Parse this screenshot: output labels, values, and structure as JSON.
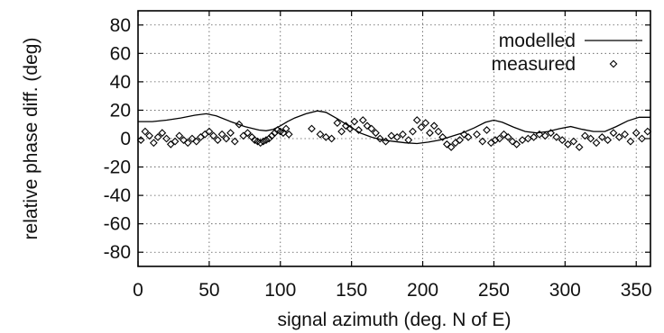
{
  "chart_data": {
    "type": "scatter",
    "title": "",
    "xlabel": "signal azimuth (deg. N of E)",
    "ylabel": "relative phase diff. (deg)",
    "xlim": [
      0,
      360
    ],
    "ylim": [
      -90,
      90
    ],
    "xticks": [
      0,
      50,
      100,
      150,
      200,
      250,
      300,
      350
    ],
    "yticks": [
      -80,
      -60,
      -40,
      -20,
      0,
      20,
      40,
      60,
      80
    ],
    "grid": true,
    "legend": "top-right",
    "series": [
      {
        "name": "modelled",
        "style": "line",
        "color": "#000000",
        "x": [
          0,
          10,
          20,
          30,
          40,
          48,
          55,
          65,
          75,
          85,
          90,
          95,
          100,
          105,
          110,
          118,
          126,
          132,
          140,
          148,
          156,
          164,
          172,
          180,
          188,
          196,
          204,
          212,
          220,
          228,
          236,
          244,
          250,
          256,
          264,
          272,
          280,
          288,
          296,
          304,
          312,
          320,
          328,
          336,
          344,
          352,
          360
        ],
        "y": [
          12,
          12,
          13,
          14.5,
          16.5,
          17.5,
          16,
          12,
          8.5,
          6,
          5.5,
          6.5,
          9,
          12,
          14.5,
          17.5,
          19.5,
          18.5,
          14,
          9,
          4,
          1,
          -1,
          -2,
          -3,
          -3.5,
          -2.5,
          -1,
          1.5,
          4,
          7.5,
          11.5,
          13,
          11.5,
          8,
          5,
          4,
          5,
          7,
          8.5,
          6.5,
          5,
          5,
          8.5,
          12.5,
          15,
          15
        ]
      },
      {
        "name": "measured",
        "style": "diamond",
        "color": "#000000",
        "x": [
          2,
          5,
          8,
          11,
          14,
          17,
          20,
          23,
          26,
          29,
          32,
          35,
          38,
          41,
          44,
          47,
          50,
          53,
          56,
          59,
          62,
          65,
          68,
          71,
          74,
          77,
          80,
          82,
          84,
          86,
          88,
          90,
          92,
          94,
          96,
          98,
          100,
          102,
          104,
          106,
          122,
          128,
          132,
          136,
          140,
          143,
          146,
          149,
          152,
          155,
          158,
          161,
          164,
          167,
          170,
          174,
          178,
          182,
          186,
          190,
          193,
          196,
          199,
          202,
          205,
          208,
          211,
          214,
          217,
          220,
          223,
          226,
          229,
          232,
          238,
          242,
          245,
          248,
          251,
          254,
          257,
          260,
          263,
          266,
          270,
          274,
          278,
          282,
          286,
          290,
          294,
          298,
          302,
          306,
          310,
          314,
          318,
          322,
          326,
          330,
          334,
          338,
          342,
          346,
          350,
          354,
          358
        ],
        "y": [
          -1,
          5,
          2,
          -3,
          1,
          4,
          0,
          -4,
          -2,
          2,
          -1,
          -3,
          0,
          -2,
          1,
          3,
          5,
          2,
          -1,
          3,
          0,
          4,
          -2,
          10,
          2,
          4,
          1,
          -1,
          -2,
          -3,
          -2,
          -1,
          0,
          2,
          4,
          6,
          5,
          4,
          7,
          3,
          7,
          3,
          1,
          0,
          11,
          5,
          9,
          7,
          12,
          6,
          13,
          9,
          7,
          4,
          0,
          -2,
          2,
          1,
          3,
          -1,
          5,
          13,
          8,
          11,
          4,
          9,
          5,
          1,
          -4,
          -6,
          -3,
          -1,
          3,
          1,
          3,
          -2,
          6,
          -3,
          -1,
          0,
          3,
          1,
          -2,
          -4,
          -1,
          0,
          1,
          3,
          2,
          4,
          1,
          -1,
          -4,
          -2,
          -6,
          2,
          0,
          -3,
          1,
          -1,
          4,
          1,
          3,
          -2,
          4,
          0,
          5
        ]
      }
    ]
  }
}
